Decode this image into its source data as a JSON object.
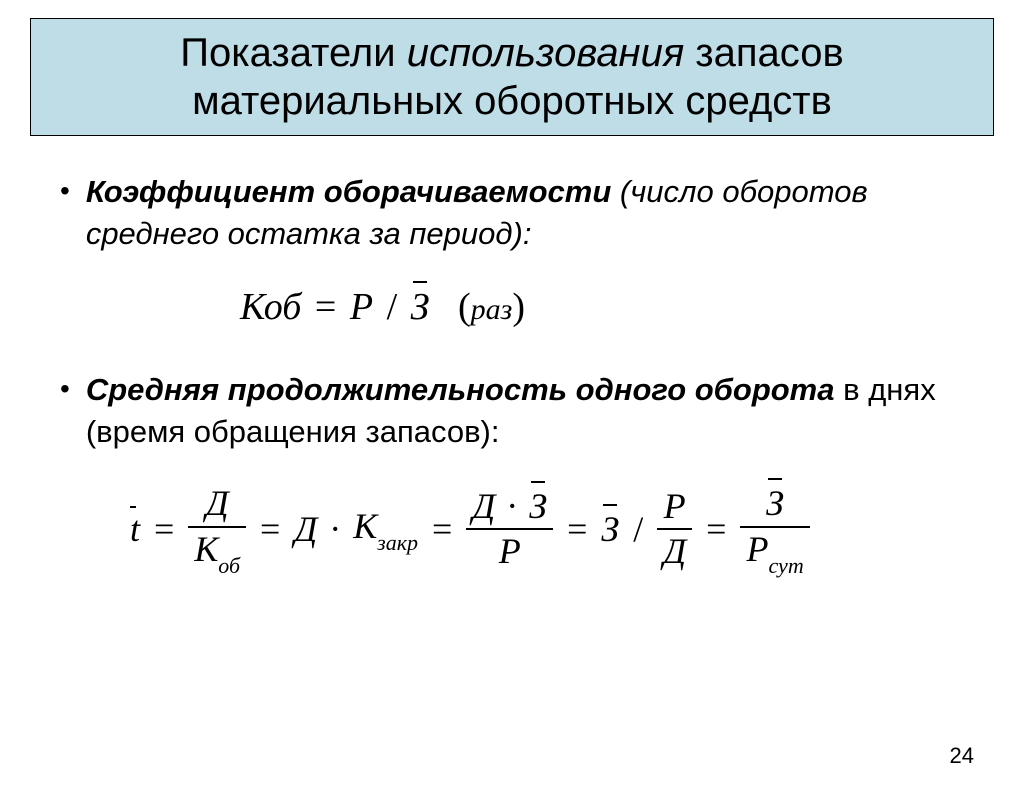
{
  "title": {
    "part1": "Показатели ",
    "italic": "использования",
    "part2": " запасов материальных оборотных средств"
  },
  "bullet1": {
    "bold": "Коэффициент оборачиваемости ",
    "rest": "(число оборотов среднего остатка за период):"
  },
  "formula1": {
    "lhs": "Коб",
    "rhs_var": "Р",
    "rhs_div": "З",
    "unit": "раз"
  },
  "bullet2": {
    "bold": "Средняя продолжительность одного оборота",
    "rest": " в днях (время обращения запасов):"
  },
  "formula2": {
    "t": "t",
    "D": "Д",
    "Kob": "К",
    "Kob_sub": "об",
    "Kzakr": "К",
    "Kzakr_sub": "закр",
    "Z": "З",
    "P": "Р",
    "Psut_sub": "сут"
  },
  "pageNumber": "24",
  "colors": {
    "title_bg": "#bedde7",
    "text": "#000000",
    "page_bg": "#ffffff"
  }
}
